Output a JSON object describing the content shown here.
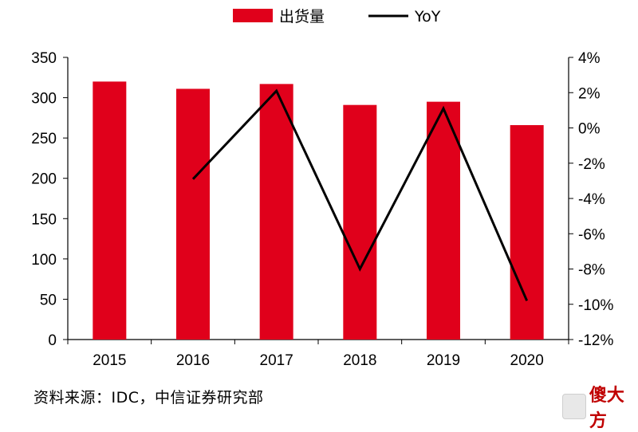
{
  "chart_data": {
    "type": "bar+line",
    "categories": [
      "2015",
      "2016",
      "2017",
      "2018",
      "2019",
      "2020"
    ],
    "series": [
      {
        "name": "出货量",
        "type": "bar",
        "axis": "left",
        "color": "#e0001b",
        "values": [
          320,
          311,
          317,
          291,
          295,
          266
        ]
      },
      {
        "name": "YoY",
        "type": "line",
        "axis": "right",
        "color": "#000000",
        "values": [
          null,
          -2.9,
          2.1,
          -8.0,
          1.1,
          -9.8
        ]
      }
    ],
    "y_left": {
      "min": 0,
      "max": 350,
      "ticks": [
        0,
        50,
        100,
        150,
        200,
        250,
        300,
        350
      ]
    },
    "y_right": {
      "min": -12,
      "max": 4,
      "ticks": [
        -12,
        -10,
        -8,
        -6,
        -4,
        -2,
        0,
        2,
        4
      ],
      "unit": "%"
    },
    "grid": false,
    "legend_position": "top-center"
  },
  "source_note": "资料来源：IDC，中信证券研究部",
  "watermark": {
    "label": "傻大方"
  }
}
